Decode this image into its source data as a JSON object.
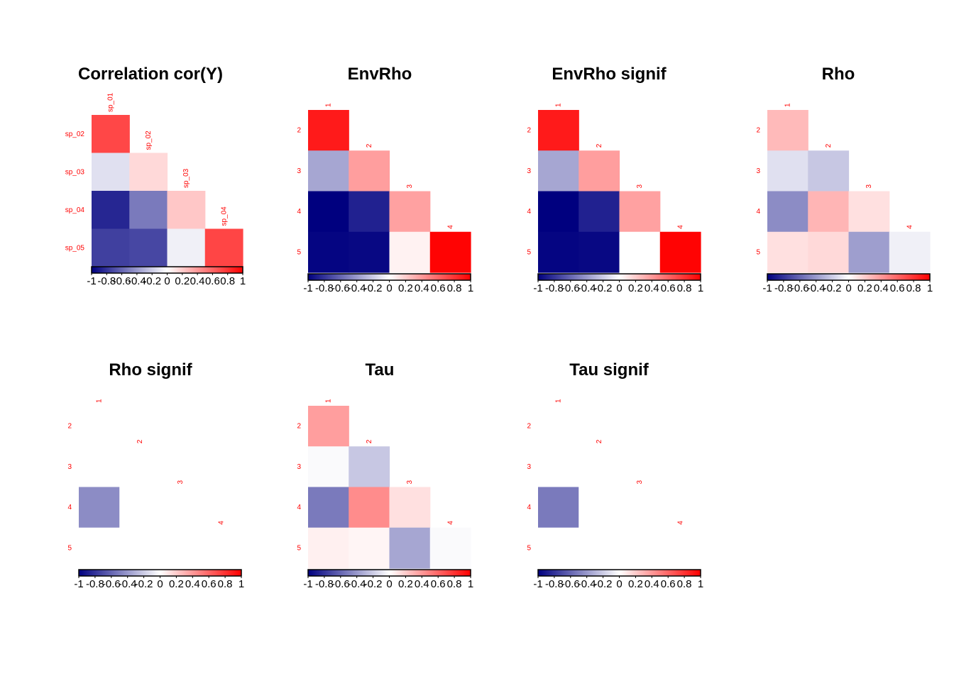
{
  "colorscale": {
    "low": "#00007f",
    "mid": "#ffffff",
    "high": "#ff0000",
    "bar_ticks": [
      "-1",
      "-0.8",
      "-0.6",
      "-0.4",
      "-0.2",
      "0",
      "0.2",
      "0.4",
      "0.6",
      "0.8",
      "1"
    ]
  },
  "chart_data": [
    {
      "type": "heatmap",
      "title": "Correlation cor(Y)",
      "row_labels": [
        "sp_02",
        "sp_03",
        "sp_04",
        "sp_05"
      ],
      "col_labels": [
        "sp_01",
        "sp_02",
        "sp_03",
        "sp_04"
      ],
      "values": [
        [
          0.72
        ],
        [
          -0.12,
          0.15
        ],
        [
          -0.85,
          -0.52,
          0.22
        ],
        [
          -0.75,
          -0.72,
          -0.06,
          0.73
        ]
      ],
      "legend": "colorbar-bottom"
    },
    {
      "type": "heatmap",
      "title": "EnvRho",
      "row_labels": [
        "2",
        "3",
        "4",
        "5"
      ],
      "col_labels": [
        "1",
        "2",
        "3",
        "4"
      ],
      "values": [
        [
          0.9
        ],
        [
          -0.35,
          0.38
        ],
        [
          -1.0,
          -0.87,
          0.37
        ],
        [
          -0.98,
          -0.97,
          0.05,
          0.99
        ]
      ],
      "legend": "colorbar-bottom"
    },
    {
      "type": "heatmap",
      "title": "EnvRho signif",
      "row_labels": [
        "2",
        "3",
        "4",
        "5"
      ],
      "col_labels": [
        "1",
        "2",
        "3",
        "4"
      ],
      "values": [
        [
          0.9
        ],
        [
          -0.35,
          0.38
        ],
        [
          -1.0,
          -0.87,
          0.37
        ],
        [
          -0.98,
          -0.97,
          0.0,
          0.99
        ]
      ],
      "legend": "colorbar-bottom"
    },
    {
      "type": "heatmap",
      "title": "Rho",
      "row_labels": [
        "2",
        "3",
        "4",
        "5"
      ],
      "col_labels": [
        "1",
        "2",
        "3",
        "4"
      ],
      "values": [
        [
          0.27
        ],
        [
          -0.12,
          -0.22
        ],
        [
          -0.45,
          0.29,
          0.12
        ],
        [
          0.12,
          0.15,
          -0.38,
          -0.06
        ]
      ],
      "legend": "colorbar-bottom"
    },
    {
      "type": "heatmap",
      "title": "Rho signif",
      "row_labels": [
        "2",
        "3",
        "4",
        "5"
      ],
      "col_labels": [
        "1",
        "2",
        "3",
        "4"
      ],
      "values": [
        [
          0.0
        ],
        [
          0.0,
          0.0
        ],
        [
          -0.45,
          0.0,
          0.0
        ],
        [
          0.0,
          0.0,
          0.0,
          0.0
        ]
      ],
      "legend": "colorbar-bottom"
    },
    {
      "type": "heatmap",
      "title": "Tau",
      "row_labels": [
        "2",
        "3",
        "4",
        "5"
      ],
      "col_labels": [
        "1",
        "2",
        "3",
        "4"
      ],
      "values": [
        [
          0.38
        ],
        [
          -0.02,
          -0.22
        ],
        [
          -0.52,
          0.45,
          0.12
        ],
        [
          0.06,
          0.04,
          -0.35,
          -0.02
        ]
      ],
      "legend": "colorbar-bottom"
    },
    {
      "type": "heatmap",
      "title": "Tau signif",
      "row_labels": [
        "2",
        "3",
        "4",
        "5"
      ],
      "col_labels": [
        "1",
        "2",
        "3",
        "4"
      ],
      "values": [
        [
          0.0
        ],
        [
          0.0,
          0.0
        ],
        [
          -0.52,
          0.0,
          0.0
        ],
        [
          0.0,
          0.0,
          0.0,
          0.0
        ]
      ],
      "legend": "colorbar-bottom"
    }
  ]
}
